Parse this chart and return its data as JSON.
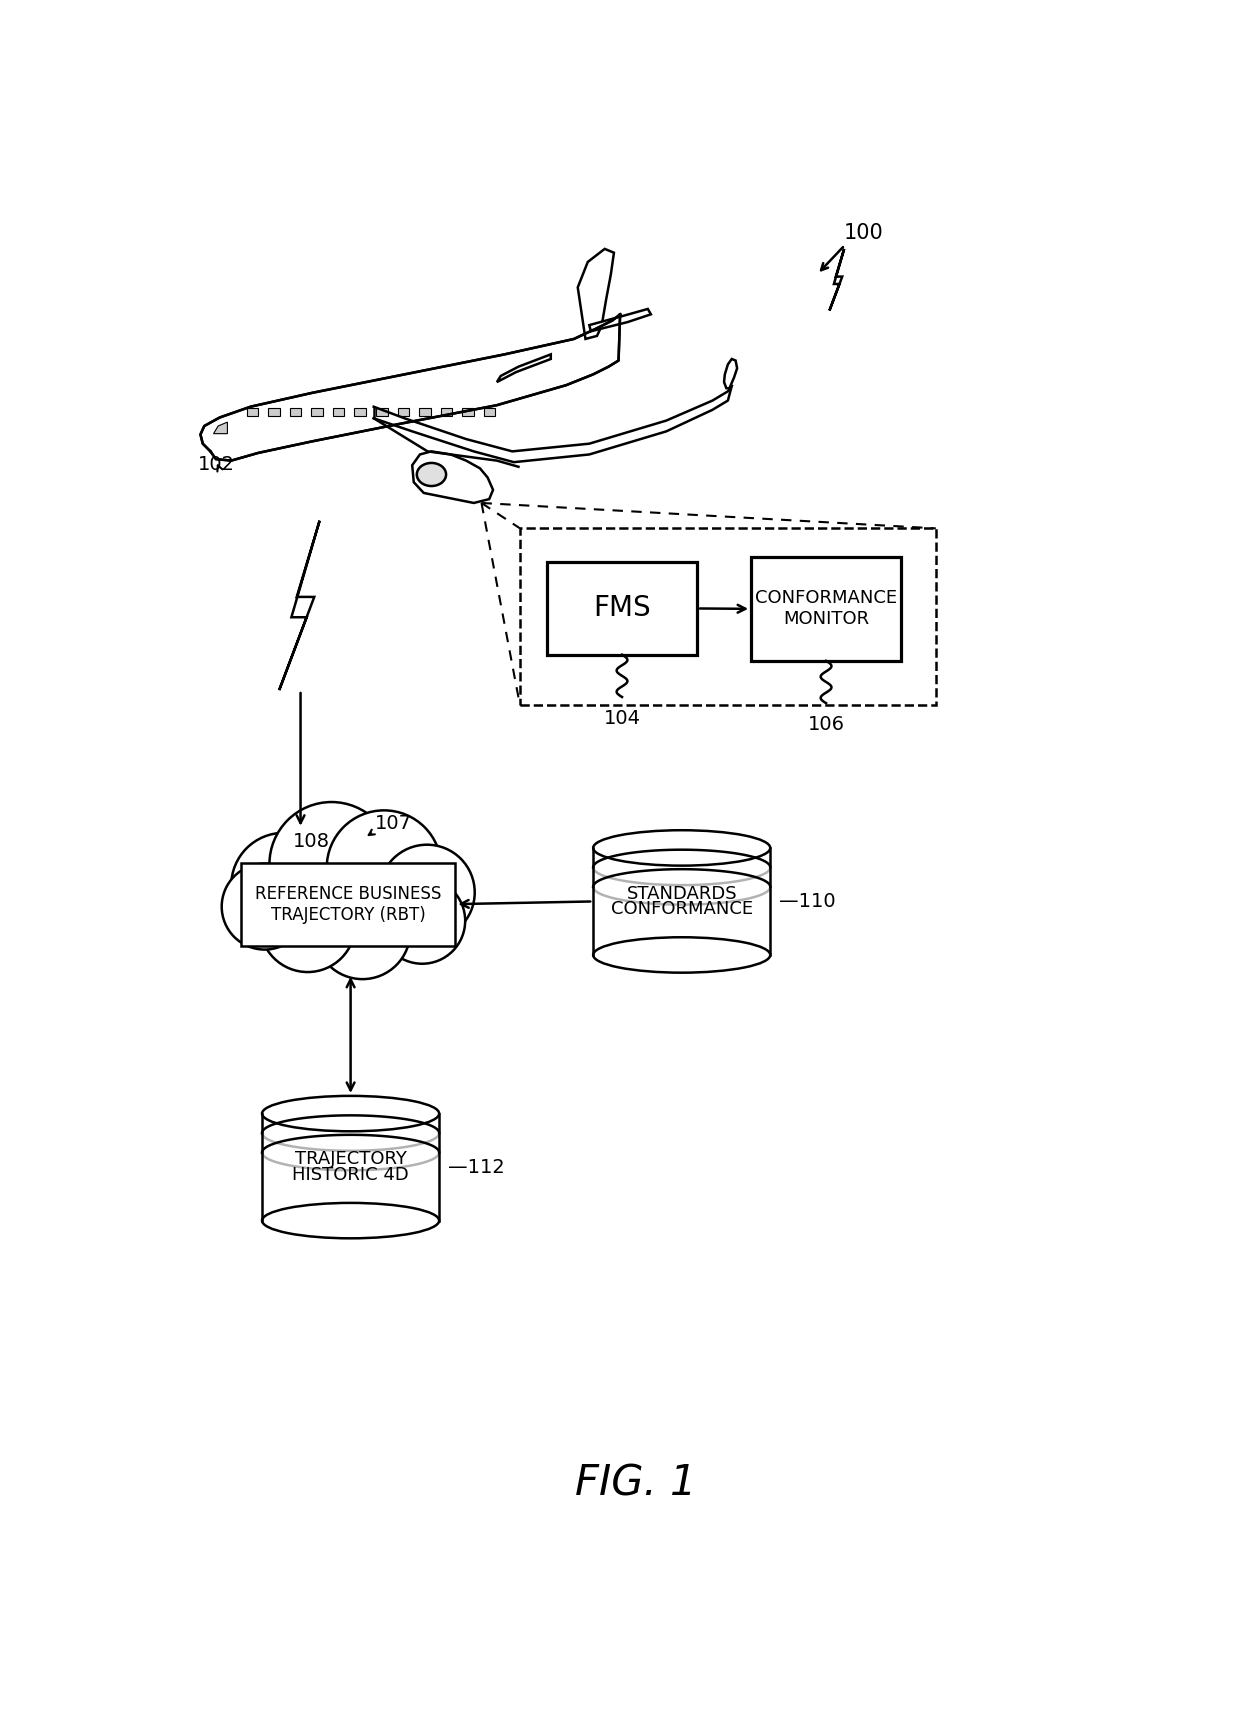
{
  "bg_color": "#ffffff",
  "line_color": "#000000",
  "fig_title": "FIG. 1",
  "label_100": "100",
  "label_102": "102",
  "label_104": "104",
  "label_106": "106",
  "label_107": "107",
  "label_108": "108",
  "label_110": "110",
  "label_112": "112",
  "fms_text": "FMS",
  "cm_text": "CONFORMANCE\nMONITOR",
  "rbt_text": "REFERENCE BUSINESS\nTRAJECTORY (RBT)",
  "cs_text": "CONFORMANCE\nSTANDARDS",
  "hist_text": "HISTORIC 4D\nTRAJECTORY"
}
